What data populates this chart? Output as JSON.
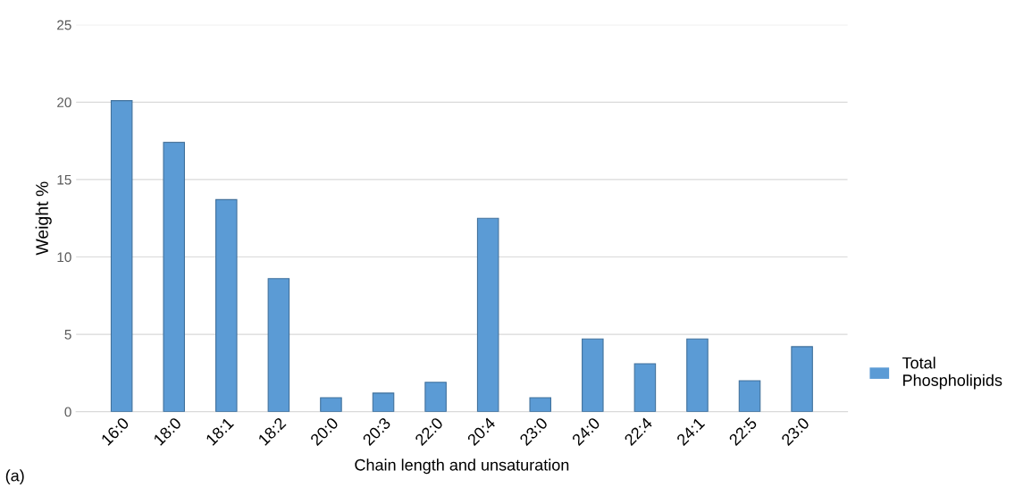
{
  "chart_data": {
    "type": "bar",
    "xlabel": "Chain length and unsaturation",
    "ylabel": "Weight %",
    "categories": [
      "16:0",
      "18:0",
      "18:1",
      "18:2",
      "20:0",
      "20:3",
      "22:0",
      "20:4",
      "23:0",
      "24:0",
      "22:4",
      "24:1",
      "22:5",
      "23:0"
    ],
    "series": [
      {
        "name": "Total Phospholipids",
        "color": "#5b9bd5",
        "values": [
          20.1,
          17.4,
          13.7,
          8.6,
          0.9,
          1.2,
          1.9,
          12.5,
          0.9,
          4.7,
          3.1,
          4.7,
          2.0,
          4.2
        ]
      }
    ],
    "ylim": [
      0,
      25
    ],
    "yticks": [
      0,
      5,
      10,
      15,
      20,
      25
    ],
    "grid": "y",
    "legend": "right",
    "annotations": [
      "(a)"
    ]
  }
}
